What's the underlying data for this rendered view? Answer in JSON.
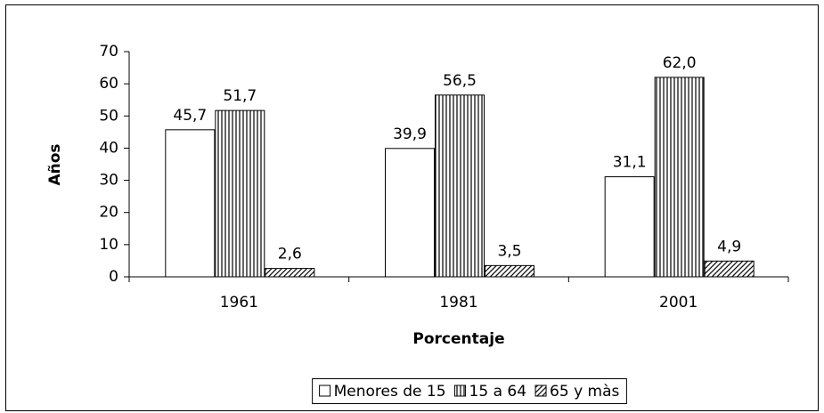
{
  "chart_data": {
    "type": "bar",
    "x_label": "Porcentaje",
    "y_label": "Años",
    "categories": [
      "1961",
      "1981",
      "2001"
    ],
    "series": [
      {
        "name": "Menores de 15",
        "color": "#ffffff",
        "pattern": "none",
        "values": [
          45.7,
          39.9,
          31.1
        ],
        "value_labels": [
          "45,7",
          "39,9",
          "31,1"
        ]
      },
      {
        "name": "15 a 64",
        "color": "#ffffff",
        "pattern": "vertical",
        "values": [
          51.7,
          56.5,
          62.0
        ],
        "value_labels": [
          "51,7",
          "56,5",
          "62,0"
        ]
      },
      {
        "name": "65 y màs",
        "color": "#ffffff",
        "pattern": "diagonal",
        "values": [
          2.6,
          3.5,
          4.9
        ],
        "value_labels": [
          "2,6",
          "3,5",
          "4,9"
        ]
      }
    ],
    "ylim": [
      0,
      70
    ],
    "yticks": [
      0,
      10,
      20,
      30,
      40,
      50,
      60,
      70
    ],
    "grid": false,
    "legend": "bottom"
  }
}
